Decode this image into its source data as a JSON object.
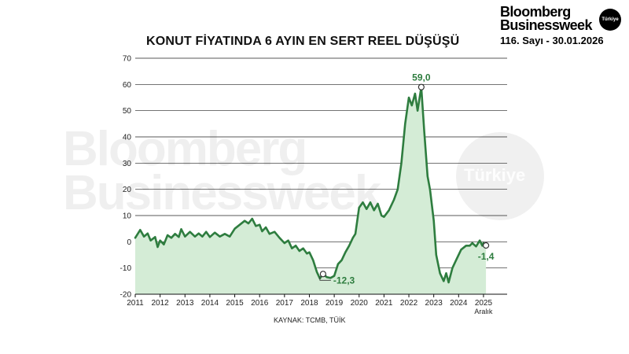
{
  "brand": {
    "line1": "Bloomberg",
    "line2": "Businessweek",
    "badge": "Türkiye",
    "issue": "116. Sayı - 30.01.2026"
  },
  "watermark": {
    "line1": "Bloomberg",
    "line2": "Businessweek",
    "circle": "Türkiye"
  },
  "chart_data": {
    "type": "area",
    "title": "KONUT FİYATINDA 6 AYIN EN SERT REEL DÜŞÜŞÜ",
    "source": "KAYNAK: TCMB, TÜİK",
    "ylim": [
      -20,
      70
    ],
    "yticks": [
      -20,
      -10,
      0,
      10,
      20,
      30,
      40,
      50,
      60,
      70
    ],
    "xlim": [
      2011,
      2025.95
    ],
    "xticks": [
      {
        "value": 2011,
        "label": "2011"
      },
      {
        "value": 2012,
        "label": "2012"
      },
      {
        "value": 2013,
        "label": "2013"
      },
      {
        "value": 2014,
        "label": "2014"
      },
      {
        "value": 2015,
        "label": "2015"
      },
      {
        "value": 2016,
        "label": "2016"
      },
      {
        "value": 2017,
        "label": "2017"
      },
      {
        "value": 2018,
        "label": "2018"
      },
      {
        "value": 2019,
        "label": "2019"
      },
      {
        "value": 2020,
        "label": "2020"
      },
      {
        "value": 2021,
        "label": "2021"
      },
      {
        "value": 2022,
        "label": "2022"
      },
      {
        "value": 2023,
        "label": "2023"
      },
      {
        "value": 2024,
        "label": "2024"
      },
      {
        "value": 2025,
        "label": "2025"
      }
    ],
    "last_tick_sublabel": "Aralık",
    "grid": true,
    "colors": {
      "line": "#2e7d3f",
      "fill": "#d4ecd6",
      "grid": "#222222",
      "label": "#2e7d3f"
    },
    "series": [
      {
        "points": [
          [
            2011.0,
            1.5
          ],
          [
            2011.2,
            4.5
          ],
          [
            2011.35,
            2.0
          ],
          [
            2011.5,
            3.2
          ],
          [
            2011.62,
            0.5
          ],
          [
            2011.8,
            1.8
          ],
          [
            2011.9,
            -2.0
          ],
          [
            2012.0,
            0.5
          ],
          [
            2012.15,
            -1.0
          ],
          [
            2012.3,
            2.5
          ],
          [
            2012.45,
            1.5
          ],
          [
            2012.6,
            3.0
          ],
          [
            2012.75,
            1.8
          ],
          [
            2012.85,
            4.8
          ],
          [
            2013.0,
            2.0
          ],
          [
            2013.2,
            3.8
          ],
          [
            2013.4,
            2.0
          ],
          [
            2013.55,
            3.2
          ],
          [
            2013.7,
            2.0
          ],
          [
            2013.85,
            3.8
          ],
          [
            2014.0,
            1.8
          ],
          [
            2014.2,
            3.5
          ],
          [
            2014.4,
            2.0
          ],
          [
            2014.6,
            3.0
          ],
          [
            2014.8,
            2.0
          ],
          [
            2015.0,
            5.0
          ],
          [
            2015.2,
            6.5
          ],
          [
            2015.4,
            8.0
          ],
          [
            2015.55,
            7.0
          ],
          [
            2015.7,
            8.8
          ],
          [
            2015.85,
            6.0
          ],
          [
            2016.0,
            6.5
          ],
          [
            2016.1,
            4.0
          ],
          [
            2016.25,
            5.5
          ],
          [
            2016.4,
            3.0
          ],
          [
            2016.6,
            3.8
          ],
          [
            2016.8,
            1.5
          ],
          [
            2017.0,
            -0.5
          ],
          [
            2017.15,
            0.5
          ],
          [
            2017.3,
            -2.5
          ],
          [
            2017.45,
            -1.5
          ],
          [
            2017.6,
            -3.5
          ],
          [
            2017.75,
            -2.5
          ],
          [
            2017.9,
            -4.5
          ],
          [
            2018.0,
            -4.0
          ],
          [
            2018.15,
            -7.0
          ],
          [
            2018.3,
            -11.5
          ],
          [
            2018.42,
            -14.0
          ],
          [
            2018.55,
            -12.3
          ],
          [
            2018.7,
            -13.5
          ],
          [
            2018.85,
            -13.8
          ],
          [
            2019.0,
            -13.0
          ],
          [
            2019.15,
            -8.5
          ],
          [
            2019.3,
            -7.0
          ],
          [
            2019.45,
            -4.0
          ],
          [
            2019.6,
            -1.5
          ],
          [
            2019.75,
            1.5
          ],
          [
            2019.85,
            3.0
          ],
          [
            2020.0,
            13.0
          ],
          [
            2020.15,
            15.0
          ],
          [
            2020.3,
            12.5
          ],
          [
            2020.45,
            15.0
          ],
          [
            2020.6,
            12.0
          ],
          [
            2020.75,
            14.5
          ],
          [
            2020.9,
            10.0
          ],
          [
            2021.0,
            9.5
          ],
          [
            2021.2,
            12.0
          ],
          [
            2021.4,
            16.0
          ],
          [
            2021.55,
            20.0
          ],
          [
            2021.7,
            30.0
          ],
          [
            2021.85,
            45.0
          ],
          [
            2022.0,
            55.0
          ],
          [
            2022.12,
            52.0
          ],
          [
            2022.25,
            56.5
          ],
          [
            2022.35,
            50.0
          ],
          [
            2022.5,
            59.0
          ],
          [
            2022.62,
            42.0
          ],
          [
            2022.75,
            25.0
          ],
          [
            2022.85,
            20.0
          ],
          [
            2023.0,
            8.0
          ],
          [
            2023.1,
            -5.0
          ],
          [
            2023.25,
            -12.0
          ],
          [
            2023.4,
            -15.0
          ],
          [
            2023.5,
            -12.0
          ],
          [
            2023.6,
            -15.5
          ],
          [
            2023.75,
            -10.0
          ],
          [
            2023.9,
            -7.0
          ],
          [
            2024.1,
            -3.0
          ],
          [
            2024.3,
            -1.5
          ],
          [
            2024.45,
            -1.5
          ],
          [
            2024.55,
            -0.5
          ],
          [
            2024.7,
            -1.8
          ],
          [
            2024.85,
            0.5
          ],
          [
            2024.95,
            -1.5
          ],
          [
            2025.0,
            -0.5
          ],
          [
            2025.1,
            -1.4
          ]
        ]
      }
    ],
    "annotations": [
      {
        "x": 2022.5,
        "y": 59.0,
        "label": "59,0",
        "position": "above"
      },
      {
        "x": 2018.55,
        "y": -12.3,
        "label": "-12,3",
        "position": "right-below"
      },
      {
        "x": 2025.1,
        "y": -1.4,
        "label": "-1,4",
        "position": "below"
      }
    ]
  }
}
